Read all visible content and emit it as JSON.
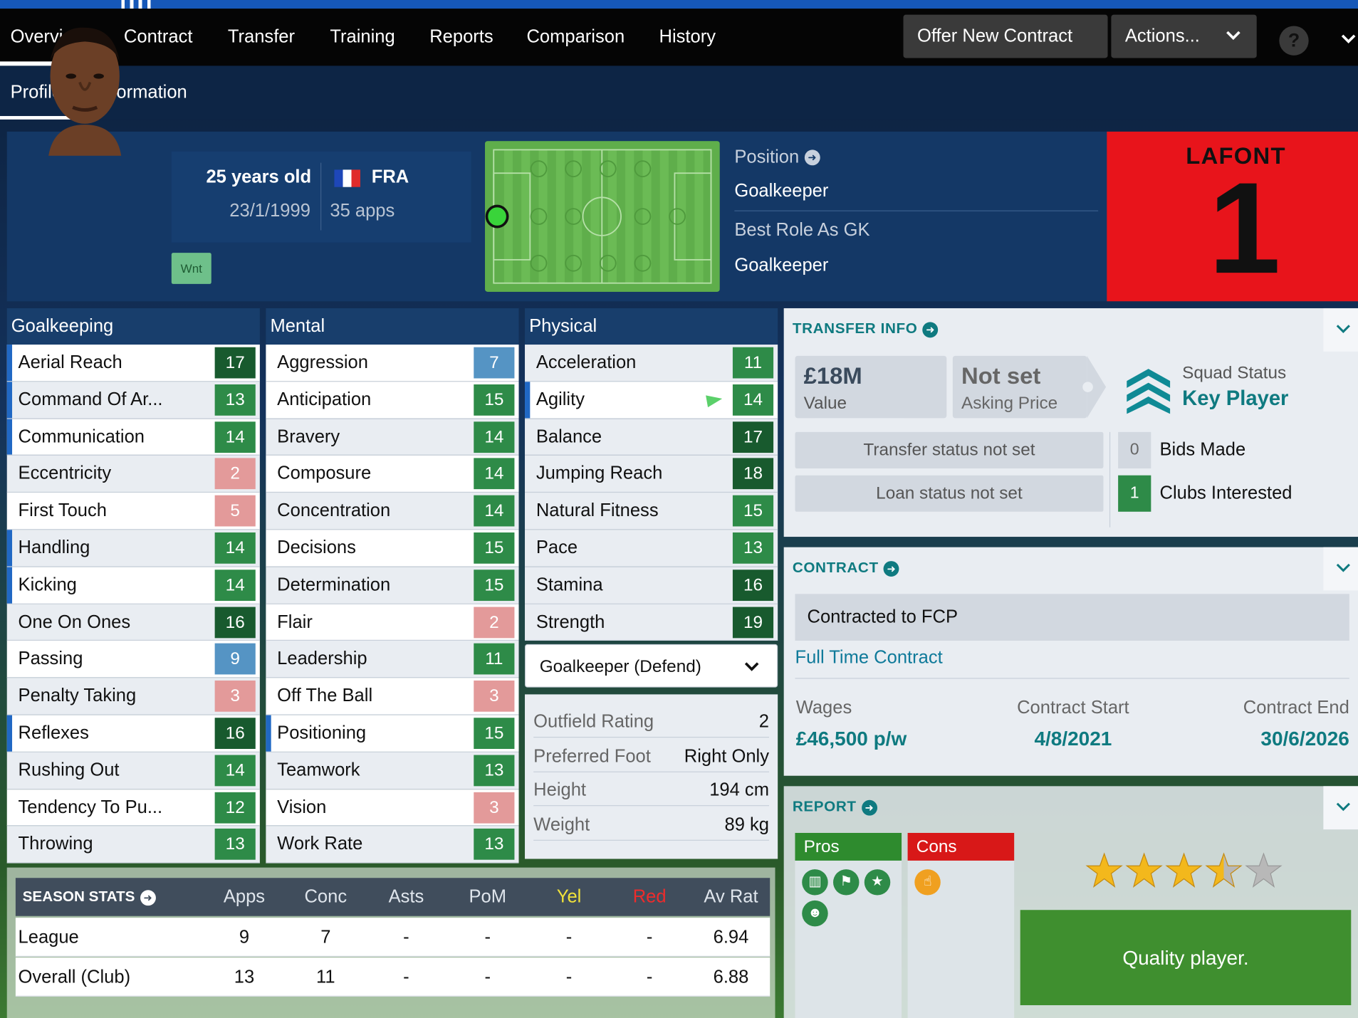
{
  "nav": {
    "tabs": [
      "Overview",
      "Contract",
      "Transfer",
      "Training",
      "Reports",
      "Comparison",
      "History"
    ],
    "offer_button": "Offer New Contract",
    "actions_button": "Actions...",
    "help": "?"
  },
  "subnav": {
    "tabs": [
      "Profile",
      "Information"
    ]
  },
  "player": {
    "age": "25 years old",
    "dob": "23/1/1999",
    "nationality": "FRA",
    "apps": "35 apps",
    "badge": "Wnt",
    "position_label": "Position",
    "position": "Goalkeeper",
    "best_role_label": "Best Role As GK",
    "best_role": "Goalkeeper",
    "shirt_name": "LAFONT",
    "shirt_number": "1"
  },
  "attributes": {
    "goalkeeping": {
      "title": "Goalkeeping",
      "items": [
        {
          "name": "Aerial Reach",
          "value": "17"
        },
        {
          "name": "Command Of Ar...",
          "value": "13"
        },
        {
          "name": "Communication",
          "value": "14"
        },
        {
          "name": "Eccentricity",
          "value": "2"
        },
        {
          "name": "First Touch",
          "value": "5"
        },
        {
          "name": "Handling",
          "value": "14"
        },
        {
          "name": "Kicking",
          "value": "14"
        },
        {
          "name": "One On Ones",
          "value": "16"
        },
        {
          "name": "Passing",
          "value": "9"
        },
        {
          "name": "Penalty Taking",
          "value": "3"
        },
        {
          "name": "Reflexes",
          "value": "16"
        },
        {
          "name": "Rushing Out",
          "value": "14"
        },
        {
          "name": "Tendency To Pu...",
          "value": "12"
        },
        {
          "name": "Throwing",
          "value": "13"
        }
      ]
    },
    "mental": {
      "title": "Mental",
      "items": [
        {
          "name": "Aggression",
          "value": "7"
        },
        {
          "name": "Anticipation",
          "value": "15"
        },
        {
          "name": "Bravery",
          "value": "14"
        },
        {
          "name": "Composure",
          "value": "14"
        },
        {
          "name": "Concentration",
          "value": "14"
        },
        {
          "name": "Decisions",
          "value": "15"
        },
        {
          "name": "Determination",
          "value": "15"
        },
        {
          "name": "Flair",
          "value": "2"
        },
        {
          "name": "Leadership",
          "value": "11"
        },
        {
          "name": "Off The Ball",
          "value": "3"
        },
        {
          "name": "Positioning",
          "value": "15"
        },
        {
          "name": "Teamwork",
          "value": "13"
        },
        {
          "name": "Vision",
          "value": "3"
        },
        {
          "name": "Work Rate",
          "value": "13"
        }
      ]
    },
    "physical": {
      "title": "Physical",
      "items": [
        {
          "name": "Acceleration",
          "value": "11"
        },
        {
          "name": "Agility",
          "value": "14"
        },
        {
          "name": "Balance",
          "value": "17"
        },
        {
          "name": "Jumping Reach",
          "value": "18"
        },
        {
          "name": "Natural Fitness",
          "value": "15"
        },
        {
          "name": "Pace",
          "value": "13"
        },
        {
          "name": "Stamina",
          "value": "16"
        },
        {
          "name": "Strength",
          "value": "19"
        }
      ]
    }
  },
  "role_select": "Goalkeeper (Defend)",
  "physical_info": [
    {
      "label": "Outfield Rating",
      "value": "2"
    },
    {
      "label": "Preferred Foot",
      "value": "Right Only"
    },
    {
      "label": "Height",
      "value": "194 cm"
    },
    {
      "label": "Weight",
      "value": "89 kg"
    }
  ],
  "season_stats": {
    "title": "SEASON STATS",
    "columns": [
      "Apps",
      "Conc",
      "Asts",
      "PoM",
      "Yel",
      "Red",
      "Av Rat"
    ],
    "rows": [
      {
        "label": "League",
        "values": [
          "9",
          "7",
          "-",
          "-",
          "-",
          "-",
          "6.94"
        ]
      },
      {
        "label": "Overall (Club)",
        "values": [
          "13",
          "11",
          "-",
          "-",
          "-",
          "-",
          "6.88"
        ]
      }
    ]
  },
  "transfer_info": {
    "title": "TRANSFER INFO",
    "value": "£18M",
    "value_label": "Value",
    "asking": "Not set",
    "asking_label": "Asking Price",
    "squad_status_label": "Squad Status",
    "squad_status": "Key Player",
    "transfer_status": "Transfer status not set",
    "loan_status": "Loan status not set",
    "bids_count": "0",
    "bids_label": "Bids Made",
    "clubs_count": "1",
    "clubs_label": "Clubs Interested"
  },
  "contract": {
    "title": "CONTRACT",
    "contracted_to": "Contracted to FCP",
    "type": "Full Time Contract",
    "wages_label": "Wages",
    "wages": "£46,500 p/w",
    "start_label": "Contract Start",
    "start": "4/8/2021",
    "end_label": "Contract End",
    "end": "30/6/2026"
  },
  "report": {
    "title": "REPORT",
    "pros_label": "Pros",
    "cons_label": "Cons",
    "rating_stars": 3.5,
    "summary": "Quality player."
  },
  "colors": {
    "accent": "#0f7a80",
    "nav_bg": "#050505",
    "good": "#2e8b48",
    "strong": "#185a2e",
    "weak": "#e39a9a",
    "avg": "#5594c4",
    "shirt": "#e8141b"
  }
}
